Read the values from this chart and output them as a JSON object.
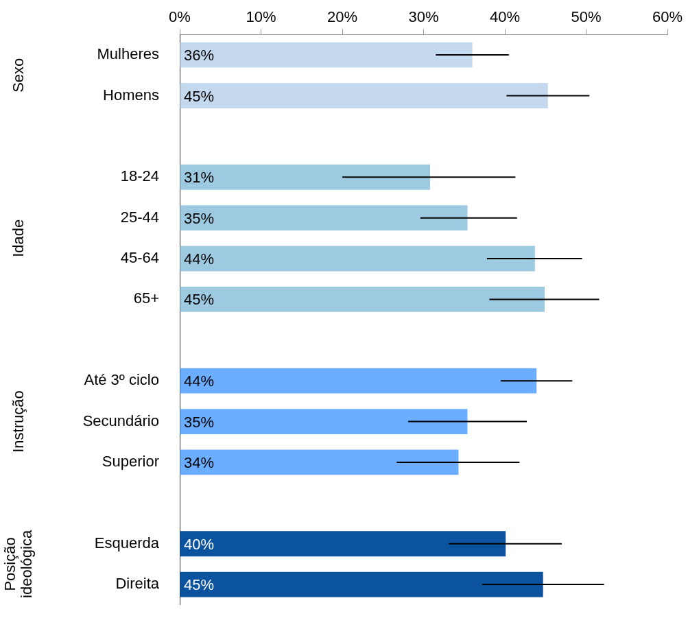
{
  "chart_data": {
    "type": "bar",
    "orientation": "horizontal",
    "categories": [
      "Mulheres",
      "Homens",
      null,
      "18-24",
      "25-44",
      "45-64",
      "65+",
      null,
      "Até 3º ciclo",
      "Secundário",
      "Superior",
      null,
      "Esquerda",
      "Direita"
    ],
    "values": [
      36.0,
      45.3,
      null,
      30.8,
      35.4,
      43.7,
      44.9,
      null,
      43.9,
      35.4,
      34.3,
      null,
      40.1,
      44.7
    ],
    "colors": [
      "#c5d9ee",
      "#c5d9ee",
      null,
      "#9ecae1",
      "#9ecae1",
      "#9ecae1",
      "#9ecae1",
      null,
      "#6baeff",
      "#6baeff",
      "#6baeff",
      null,
      "#0b539f",
      "#0b539f"
    ],
    "errors": [
      [
        31.5,
        40.5
      ],
      [
        40.2,
        50.4
      ],
      null,
      [
        20.0,
        41.3
      ],
      [
        29.6,
        41.5
      ],
      [
        37.8,
        49.5
      ],
      [
        38.1,
        51.6
      ],
      null,
      [
        39.5,
        48.3
      ],
      [
        28.1,
        42.7
      ],
      [
        26.7,
        41.8
      ],
      null,
      [
        33.1,
        47.0
      ],
      [
        37.2,
        52.2
      ]
    ],
    "value_labels": [
      "36%",
      "45%",
      null,
      "31%",
      "35%",
      "44%",
      "45%",
      null,
      "44%",
      "35%",
      "34%",
      null,
      "40%",
      "45%"
    ],
    "xlim": [
      0,
      60
    ],
    "xticks": [
      {
        "value": 0,
        "label": "0%"
      },
      {
        "value": 10,
        "label": "10%"
      },
      {
        "value": 20,
        "label": "20%"
      },
      {
        "value": 30,
        "label": "30%"
      },
      {
        "value": 40,
        "label": "40%"
      },
      {
        "value": 50,
        "label": "50%"
      },
      {
        "value": 60,
        "label": "60%"
      }
    ],
    "annotations": [
      "Sexo",
      "Idade",
      "Instrução",
      "Posição ideológica"
    ]
  }
}
